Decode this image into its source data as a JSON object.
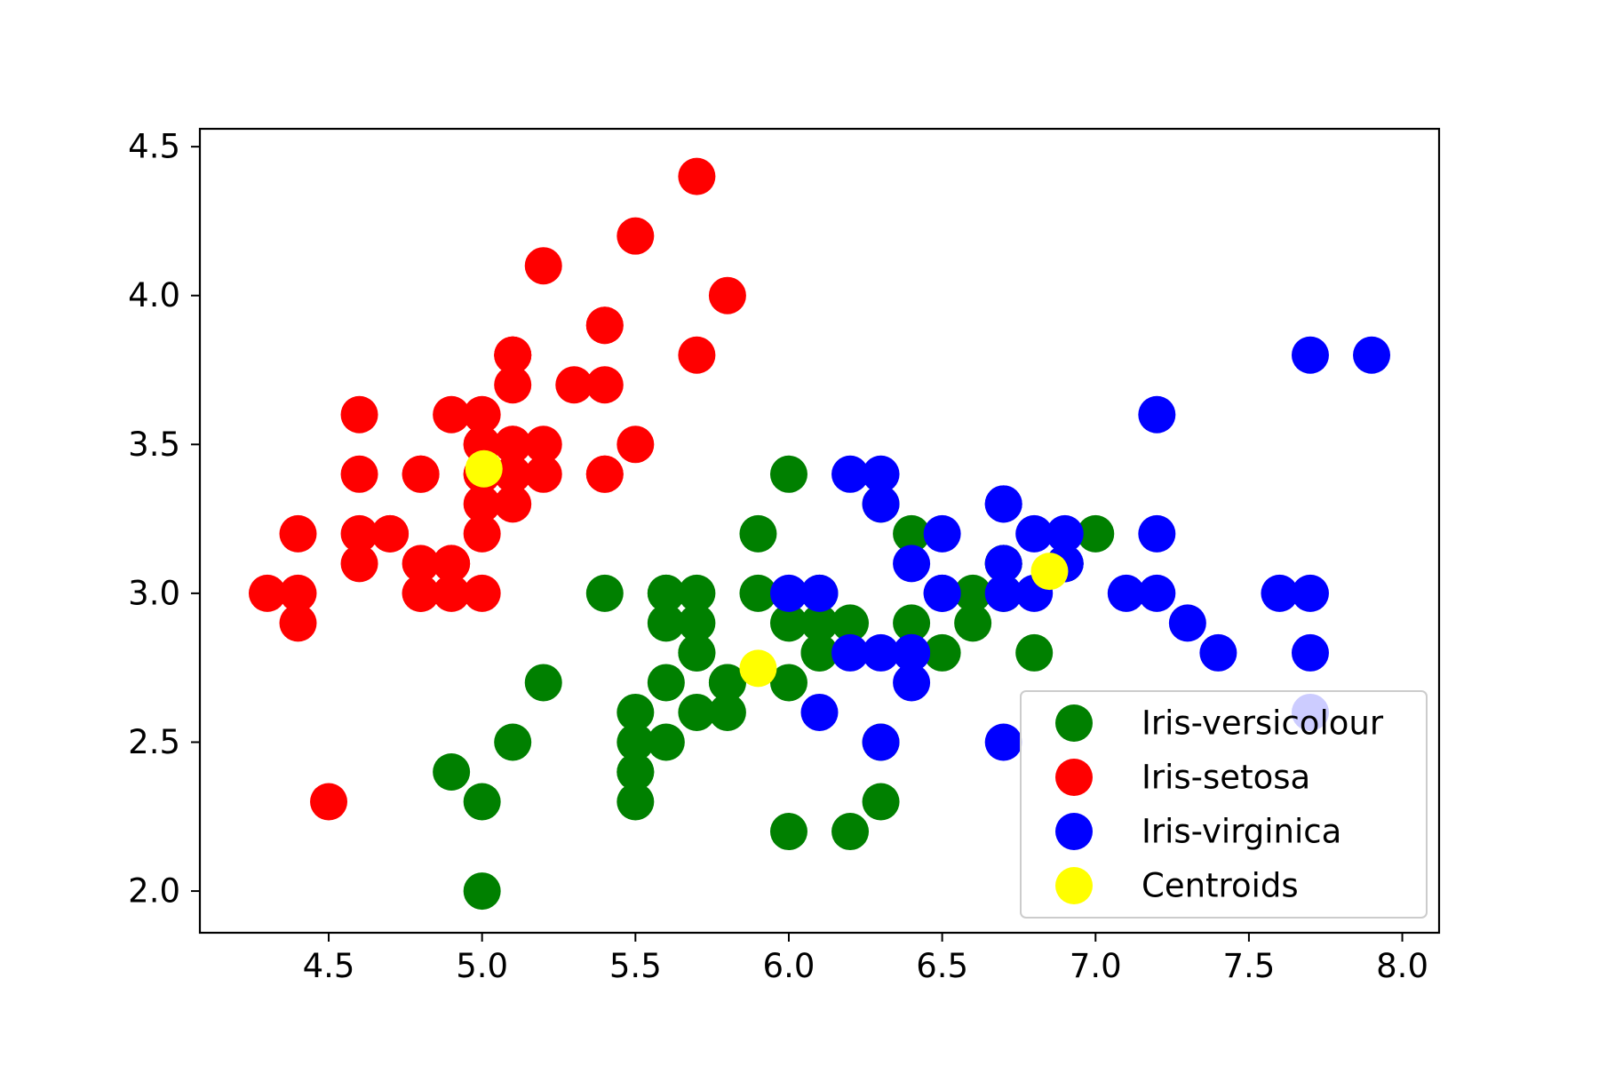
{
  "chart_data": {
    "type": "scatter",
    "title": "",
    "xlabel": "",
    "ylabel": "",
    "xlim": [
      4.08,
      8.12
    ],
    "ylim": [
      1.86,
      4.56
    ],
    "xticks": [
      4.5,
      5.0,
      5.5,
      6.0,
      6.5,
      7.0,
      7.5,
      8.0
    ],
    "xtick_labels": [
      "4.5",
      "5.0",
      "5.5",
      "6.0",
      "6.5",
      "7.0",
      "7.5",
      "8.0"
    ],
    "yticks": [
      2.0,
      2.5,
      3.0,
      3.5,
      4.0,
      4.5
    ],
    "ytick_labels": [
      "2.0",
      "2.5",
      "3.0",
      "3.5",
      "4.0",
      "4.5"
    ],
    "grid": false,
    "legend_position": "lower-right",
    "series": [
      {
        "name": "Iris-versicolour",
        "color": "#008000",
        "x": [
          7.0,
          6.4,
          6.9,
          5.5,
          6.5,
          5.7,
          6.3,
          4.9,
          6.6,
          5.2,
          5.0,
          5.9,
          6.0,
          6.1,
          5.6,
          6.7,
          5.6,
          5.8,
          6.2,
          5.6,
          5.9,
          6.1,
          6.3,
          6.1,
          6.4,
          6.6,
          6.8,
          6.7,
          6.0,
          5.7,
          5.5,
          5.5,
          5.8,
          6.0,
          5.4,
          6.0,
          6.7,
          6.3,
          5.6,
          5.5,
          5.5,
          6.1,
          5.8,
          5.0,
          5.6,
          5.7,
          5.7,
          6.2,
          5.1,
          5.7
        ],
        "y": [
          3.2,
          3.2,
          3.1,
          2.3,
          2.8,
          2.8,
          3.3,
          2.4,
          2.9,
          2.7,
          2.0,
          3.0,
          2.2,
          2.9,
          2.9,
          3.1,
          3.0,
          2.7,
          2.2,
          2.5,
          3.2,
          2.8,
          2.5,
          2.8,
          2.9,
          3.0,
          2.8,
          3.0,
          2.9,
          2.6,
          2.4,
          2.4,
          2.7,
          2.7,
          3.0,
          3.4,
          3.1,
          2.3,
          3.0,
          2.5,
          2.6,
          3.0,
          2.6,
          2.3,
          2.7,
          3.0,
          2.9,
          2.9,
          2.5,
          2.8
        ]
      },
      {
        "name": "Iris-setosa",
        "color": "#ff0000",
        "x": [
          5.1,
          4.9,
          4.7,
          4.6,
          5.0,
          5.4,
          4.6,
          5.0,
          4.4,
          4.9,
          5.4,
          4.8,
          4.8,
          4.3,
          5.8,
          5.7,
          5.4,
          5.1,
          5.7,
          5.1,
          5.4,
          5.1,
          4.6,
          5.1,
          4.8,
          5.0,
          5.0,
          5.2,
          5.2,
          4.7,
          4.8,
          5.4,
          5.2,
          5.5,
          4.9,
          5.0,
          5.5,
          4.9,
          4.4,
          5.1,
          5.0,
          4.5,
          4.4,
          5.0,
          5.1,
          4.8,
          5.1,
          4.6,
          5.3,
          5.0
        ],
        "y": [
          3.5,
          3.0,
          3.2,
          3.1,
          3.6,
          3.9,
          3.4,
          3.4,
          2.9,
          3.1,
          3.7,
          3.4,
          3.0,
          3.0,
          4.0,
          4.4,
          3.9,
          3.5,
          3.8,
          3.8,
          3.4,
          3.7,
          3.6,
          3.3,
          3.4,
          3.0,
          3.4,
          3.5,
          3.4,
          3.2,
          3.1,
          3.4,
          4.1,
          4.2,
          3.1,
          3.2,
          3.5,
          3.6,
          3.0,
          3.4,
          3.5,
          2.3,
          3.2,
          3.5,
          3.8,
          3.0,
          3.8,
          3.2,
          3.7,
          3.3
        ]
      },
      {
        "name": "Iris-virginica",
        "color": "#0000ff",
        "x": [
          6.3,
          7.1,
          6.5,
          7.6,
          7.3,
          6.7,
          7.2,
          6.4,
          6.8,
          6.5,
          6.4,
          7.7,
          7.7,
          6.9,
          7.7,
          6.7,
          7.2,
          6.2,
          6.1,
          6.4,
          7.2,
          7.4,
          7.9,
          6.4,
          6.3,
          6.1,
          7.7,
          6.3,
          6.4,
          6.0,
          6.9,
          6.7,
          6.9,
          6.8,
          6.7,
          6.7,
          6.3,
          6.5,
          6.2
        ],
        "y": [
          3.3,
          3.0,
          3.0,
          3.0,
          2.9,
          2.5,
          3.6,
          2.7,
          3.0,
          3.2,
          2.8,
          3.8,
          2.6,
          3.2,
          2.8,
          3.3,
          3.2,
          2.8,
          3.0,
          2.8,
          3.0,
          2.8,
          3.8,
          2.8,
          2.8,
          2.6,
          3.0,
          3.4,
          3.1,
          3.0,
          3.1,
          3.1,
          3.1,
          3.2,
          3.3,
          3.0,
          2.5,
          3.0,
          3.4
        ]
      },
      {
        "name": "Centroids",
        "color": "#ffff00",
        "x": [
          5.9,
          5.006,
          6.85
        ],
        "y": [
          2.748,
          3.418,
          3.074
        ]
      }
    ]
  }
}
